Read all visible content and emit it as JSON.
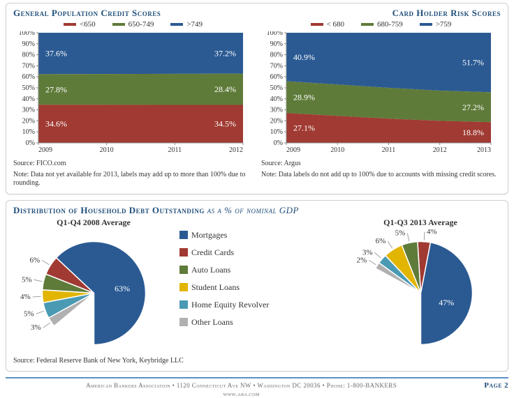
{
  "colors": {
    "red": "#a03a32",
    "green": "#5f7b3a",
    "blue": "#2b5a93",
    "yellow": "#e2b500",
    "teal": "#4a9ab3",
    "grey": "#b0b0b0",
    "axis": "#888888",
    "grid": "#e6e6e6",
    "text": "#333333",
    "title": "#1f4e79"
  },
  "area_left": {
    "title": "General Population Credit Scores",
    "legend": [
      "<650",
      "650-749",
      ">749"
    ],
    "x": [
      2009,
      2010,
      2011,
      2012
    ],
    "ylim": [
      0,
      100
    ],
    "ytick": 10,
    "series_red": [
      34.6,
      34.6,
      34.5,
      34.5
    ],
    "series_green": [
      27.8,
      28.0,
      28.2,
      28.4
    ],
    "series_blue": [
      37.6,
      37.4,
      37.3,
      37.2
    ],
    "labels_left": {
      "blue": "37.6%",
      "green": "27.8%",
      "red": "34.6%"
    },
    "labels_right": {
      "blue": "37.2%",
      "green": "28.4%",
      "red": "34.5%"
    },
    "source": "Source: FICO.com",
    "note": "Note: Data not yet available for 2013, labels may add up to more than 100% due to rounding."
  },
  "area_right": {
    "title": "Card Holder Risk Scores",
    "legend": [
      "< 680",
      "680-759",
      ">759"
    ],
    "x": [
      2009,
      2010,
      2011,
      2012,
      2013
    ],
    "ylim": [
      0,
      100
    ],
    "ytick": 10,
    "series_red": [
      27.1,
      24.5,
      22.0,
      20.0,
      18.8
    ],
    "series_green": [
      28.9,
      28.5,
      28.0,
      27.5,
      27.2
    ],
    "series_blue": [
      40.9,
      44.0,
      47.0,
      49.5,
      51.7
    ],
    "labels_left": {
      "blue": "40.9%",
      "green": "28.9%",
      "red": "27.1%"
    },
    "labels_right": {
      "blue": "51.7%",
      "green": "27.2%",
      "red": "18.8%"
    },
    "source": "Source: Argus",
    "note": "Note: Data labels do not add up to 100% due to accounts with missing credit scores."
  },
  "dist": {
    "title": "Distribution of Household Debt Outstanding",
    "title_suffix": " as a % of nominal GDP",
    "categories": [
      "Mortgages",
      "Credit Cards",
      "Auto Loans",
      "Student Loans",
      "Home Equity Revolver",
      "Other Loans"
    ],
    "cat_colors": [
      "#2b5a93",
      "#a03a32",
      "#5f7b3a",
      "#e2b500",
      "#4a9ab3",
      "#b0b0b0"
    ],
    "pie1": {
      "subtitle": "Q1-Q4 2008 Average",
      "values": [
        63,
        6,
        5,
        4,
        5,
        3
      ],
      "gap_deg": 50
    },
    "pie2": {
      "subtitle": "Q1-Q3 2013 Average",
      "values": [
        47,
        4,
        5,
        6,
        3,
        2
      ],
      "gap_deg": 119
    },
    "source": "Source: Federal Reserve Bank of New York, Keybridge LLC"
  },
  "footer": {
    "line1": "American Bankers Association • 1120 Connecticut Ave NW • Washington DC 20036 • Phone: 1-800-BANKERS",
    "line2": "www.aba.com",
    "page": "Page 2"
  }
}
